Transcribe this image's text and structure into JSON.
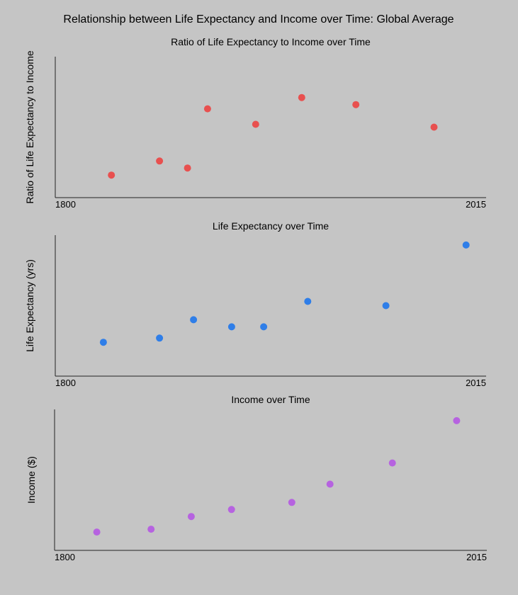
{
  "title": "Relationship between Life Expectancy and Income over Time: Global Average",
  "chart_data": [
    {
      "type": "scatter",
      "title": "Ratio of Life Expectancy to Income over Time",
      "xlabel": "",
      "ylabel": "Ratio of Life Expectancy to Income",
      "xlim": [
        1800,
        2015
      ],
      "x_tick_labels": [
        "1800",
        "2015"
      ],
      "y_ticks_shown": false,
      "grid": false,
      "color": "#e8504f",
      "points": [
        {
          "x": 1828,
          "y": 0.16
        },
        {
          "x": 1852,
          "y": 0.26
        },
        {
          "x": 1866,
          "y": 0.21
        },
        {
          "x": 1876,
          "y": 0.63
        },
        {
          "x": 1900,
          "y": 0.52
        },
        {
          "x": 1923,
          "y": 0.71
        },
        {
          "x": 1950,
          "y": 0.66
        },
        {
          "x": 1989,
          "y": 0.5
        }
      ]
    },
    {
      "type": "scatter",
      "title": "Life Expectancy over Time",
      "xlabel": "",
      "ylabel": "Life Expectancy (yrs)",
      "xlim": [
        1800,
        2015
      ],
      "x_tick_labels": [
        "1800",
        "2015"
      ],
      "y_ticks_shown": false,
      "grid": false,
      "color": "#2f7ee8",
      "points": [
        {
          "x": 1824,
          "y": 0.24
        },
        {
          "x": 1852,
          "y": 0.27
        },
        {
          "x": 1869,
          "y": 0.4
        },
        {
          "x": 1888,
          "y": 0.35
        },
        {
          "x": 1904,
          "y": 0.35
        },
        {
          "x": 1926,
          "y": 0.53
        },
        {
          "x": 1965,
          "y": 0.5
        },
        {
          "x": 2005,
          "y": 0.93
        }
      ]
    },
    {
      "type": "scatter",
      "title": "Income over Time",
      "xlabel": "",
      "ylabel": "Income ($)",
      "xlim": [
        1800,
        2015
      ],
      "x_tick_labels": [
        "1800",
        "2015"
      ],
      "y_ticks_shown": false,
      "grid": false,
      "color": "#b663e0",
      "points": [
        {
          "x": 1821,
          "y": 0.13
        },
        {
          "x": 1848,
          "y": 0.15
        },
        {
          "x": 1868,
          "y": 0.24
        },
        {
          "x": 1888,
          "y": 0.29
        },
        {
          "x": 1918,
          "y": 0.34
        },
        {
          "x": 1937,
          "y": 0.47
        },
        {
          "x": 1968,
          "y": 0.62
        },
        {
          "x": 2000,
          "y": 0.92
        }
      ]
    }
  ]
}
